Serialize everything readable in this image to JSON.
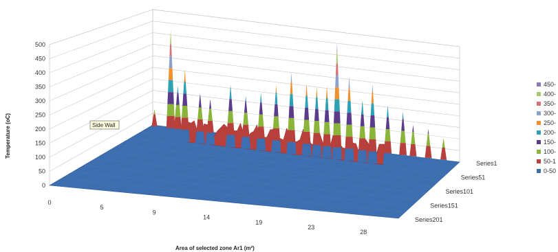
{
  "chart_data": {
    "type": "surface",
    "title": "",
    "xlabel": "Area of selected zone Ar1 (m²)",
    "ylabel": "Temperature (oC)",
    "zlim": [
      0,
      500
    ],
    "z_ticks": [
      "0",
      "50",
      "100",
      "150",
      "200",
      "250",
      "300",
      "350",
      "400",
      "450",
      "500"
    ],
    "x_categories": [
      "0",
      "5",
      "9",
      "14",
      "19",
      "23",
      "28"
    ],
    "depth_categories": [
      "Series1",
      "Series51",
      "Series101",
      "Series151",
      "Series201"
    ],
    "legend": [
      {
        "label": "450-",
        "color": "#8c7ab8"
      },
      {
        "label": "400-",
        "color": "#a6c96a"
      },
      {
        "label": "350-",
        "color": "#d9737a"
      },
      {
        "label": "300-",
        "color": "#8aa2cc"
      },
      {
        "label": "250-",
        "color": "#f0902f"
      },
      {
        "label": "200-",
        "color": "#2ea2b4"
      },
      {
        "label": "150-",
        "color": "#5b3c8a"
      },
      {
        "label": "100-",
        "color": "#8ab43a"
      },
      {
        "label": "50-1",
        "color": "#b8403c"
      },
      {
        "label": "0-50",
        "color": "#3d6eb0"
      }
    ],
    "annotation": "Side Wall",
    "peaks": [
      {
        "x": 2.0,
        "z": 120
      },
      {
        "x": 3.6,
        "z": 460
      },
      {
        "x": 4.3,
        "z": 230
      },
      {
        "x": 5.0,
        "z": 300
      },
      {
        "x": 6.5,
        "z": 210
      },
      {
        "x": 7.5,
        "z": 190
      },
      {
        "x": 9.5,
        "z": 260
      },
      {
        "x": 11.0,
        "z": 220
      },
      {
        "x": 12.5,
        "z": 240
      },
      {
        "x": 14.0,
        "z": 280
      },
      {
        "x": 15.5,
        "z": 340
      },
      {
        "x": 17.0,
        "z": 300
      },
      {
        "x": 18.0,
        "z": 290
      },
      {
        "x": 19.0,
        "z": 300
      },
      {
        "x": 20.0,
        "z": 480
      },
      {
        "x": 21.2,
        "z": 350
      },
      {
        "x": 22.5,
        "z": 260
      },
      {
        "x": 23.5,
        "z": 330
      },
      {
        "x": 25.0,
        "z": 250
      },
      {
        "x": 26.5,
        "z": 230
      },
      {
        "x": 27.5,
        "z": 180
      },
      {
        "x": 29.0,
        "z": 170
      },
      {
        "x": 30.5,
        "z": 140
      }
    ]
  }
}
